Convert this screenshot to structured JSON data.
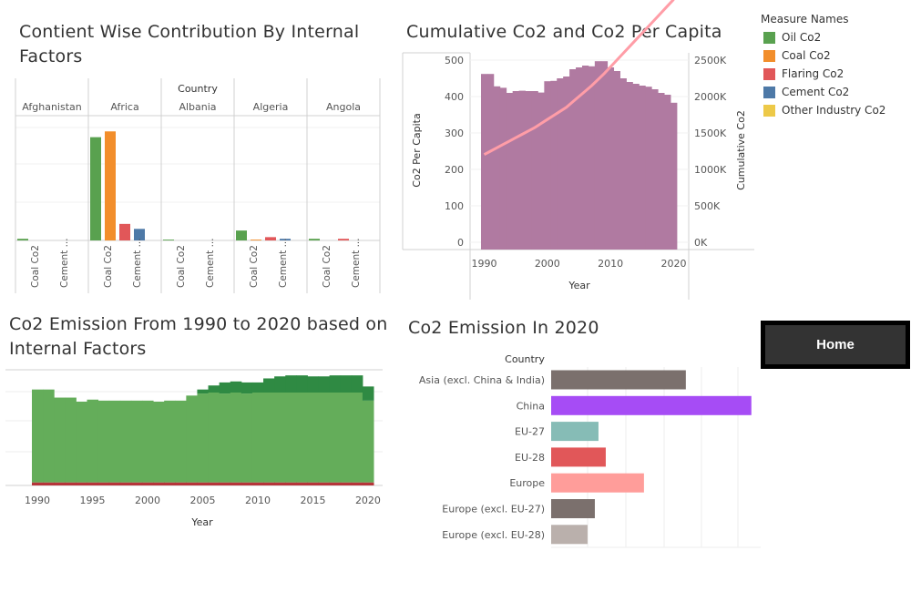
{
  "titles": {
    "top_left": [
      "Contient Wise Contribution By Internal",
      "Factors"
    ],
    "top_right": "Cumulative Co2 and Co2 Per Capita",
    "bottom_left": [
      "Co2 Emission From 1990 to 2020 based on",
      "Internal Factors"
    ],
    "bottom_right": "Co2 Emission In 2020"
  },
  "home_button": "Home",
  "legend": {
    "title": "Measure Names",
    "items": [
      {
        "label": "Oil Co2",
        "color": "#59a14f"
      },
      {
        "label": "Coal Co2",
        "color": "#f28e2b"
      },
      {
        "label": "Flaring Co2",
        "color": "#e15759"
      },
      {
        "label": "Cement Co2",
        "color": "#4e79a7"
      },
      {
        "label": "Other Industry Co2",
        "color": "#edc948"
      }
    ]
  },
  "chart_data": [
    {
      "type": "bar",
      "id": "continent_factors",
      "column_header": "Country",
      "countries": [
        "Afghanistan",
        "Africa",
        "Albania",
        "Algeria",
        "Angola"
      ],
      "tick_labels": [
        "Coal Co2",
        "Cement ..."
      ],
      "series": [
        {
          "name": "Oil Co2",
          "color": "#59a14f",
          "values": [
            2,
            125,
            1,
            12,
            2
          ]
        },
        {
          "name": "Coal Co2",
          "color": "#f28e2b",
          "values": [
            0,
            132,
            0,
            1,
            0
          ]
        },
        {
          "name": "Flaring Co2",
          "color": "#e15759",
          "values": [
            0,
            20,
            0,
            4,
            2
          ]
        },
        {
          "name": "Cement Co2",
          "color": "#4e79a7",
          "values": [
            0,
            14,
            0,
            2,
            0
          ]
        }
      ],
      "ylim": [
        0,
        140
      ]
    },
    {
      "type": "bar",
      "id": "cumulative_per_capita",
      "xlabel": "Year",
      "ylabel_left": "Co2 Per Capita",
      "ylabel_right": "Cumulative Co2",
      "left_ticks": [
        "0",
        "100",
        "200",
        "300",
        "400",
        "500"
      ],
      "right_ticks": [
        "0K",
        "500K",
        "1000K",
        "1500K",
        "2000K",
        "2500K"
      ],
      "x_ticks": [
        "1990",
        "2000",
        "2010",
        "2020"
      ],
      "x": [
        1990,
        1991,
        1992,
        1993,
        1994,
        1995,
        1996,
        1997,
        1998,
        1999,
        2000,
        2001,
        2002,
        2003,
        2004,
        2005,
        2006,
        2007,
        2008,
        2009,
        2010,
        2011,
        2012,
        2013,
        2014,
        2015,
        2016,
        2017,
        2018,
        2019,
        2020
      ],
      "per_capita": [
        462,
        462,
        428,
        424,
        410,
        415,
        416,
        415,
        415,
        411,
        442,
        443,
        450,
        455,
        475,
        480,
        485,
        483,
        497,
        497,
        480,
        470,
        450,
        440,
        435,
        430,
        427,
        420,
        410,
        405,
        383
      ],
      "cumulative": [
        1300,
        1350,
        1400,
        1450,
        1500,
        1550,
        1600,
        1650,
        1700,
        1760,
        1820,
        1880,
        1940,
        2000,
        2080,
        2160,
        2240,
        2320,
        2410,
        2500,
        2600,
        2700,
        2800,
        2900,
        3000,
        3100,
        3200,
        3300,
        3400,
        3500,
        3600
      ],
      "ylim_left": [
        0,
        520
      ],
      "ylim_right": [
        0,
        2700
      ],
      "bar_color": "#b07aa1",
      "line_color": "#ff9da7"
    },
    {
      "type": "area",
      "id": "emission_1990_2020",
      "xlabel": "Year",
      "x_ticks": [
        "1990",
        "1995",
        "2000",
        "2005",
        "2010",
        "2015",
        "2020"
      ],
      "x": [
        1990,
        1991,
        1992,
        1993,
        1994,
        1995,
        1996,
        1997,
        1998,
        1999,
        2000,
        2001,
        2002,
        2003,
        2004,
        2005,
        2006,
        2007,
        2008,
        2009,
        2010,
        2011,
        2012,
        2013,
        2014,
        2015,
        2016,
        2017,
        2018,
        2019,
        2020
      ],
      "series": [
        {
          "name": "Flaring Co2",
          "color": "#b5353a",
          "values": [
            3,
            3,
            3,
            3,
            3,
            3,
            3,
            3,
            3,
            3,
            3,
            3,
            3,
            3,
            3,
            3,
            3,
            3,
            3,
            3,
            3,
            3,
            3,
            3,
            3,
            3,
            3,
            3,
            3,
            3,
            3
          ]
        },
        {
          "name": "Oil Co2",
          "color": "#64ad5a",
          "values": [
            92,
            92,
            84,
            84,
            80,
            82,
            81,
            81,
            81,
            81,
            81,
            80,
            81,
            81,
            86,
            88,
            89,
            88,
            89,
            88,
            89,
            89,
            89,
            89,
            89,
            89,
            89,
            89,
            89,
            89,
            81
          ]
        },
        {
          "name": "Coal Co2",
          "color": "#2f8a43",
          "values": [
            0,
            0,
            0,
            0,
            0,
            0,
            0,
            0,
            0,
            0,
            0,
            0,
            0,
            0,
            0,
            4,
            7,
            11,
            11,
            11,
            10,
            14,
            16,
            17,
            17,
            16,
            16,
            17,
            17,
            17,
            14
          ]
        }
      ],
      "ylim": [
        0,
        115
      ]
    },
    {
      "type": "bar",
      "id": "emission_2020",
      "orientation": "horizontal",
      "ylabel": "Country",
      "categories": [
        "Asia (excl. China & India)",
        "China",
        "EU-27",
        "EU-28",
        "Europe",
        "Europe (excl. EU-27)",
        "Europe (excl. EU-28)"
      ],
      "values": [
        3.7,
        5.5,
        1.3,
        1.5,
        2.55,
        1.2,
        1.0
      ],
      "colors": [
        "#7b706d",
        "#a64cf5",
        "#86bcb6",
        "#e15759",
        "#ff9d9a",
        "#7b706d",
        "#bab0ac"
      ],
      "xlim": [
        0,
        5.8
      ]
    }
  ]
}
